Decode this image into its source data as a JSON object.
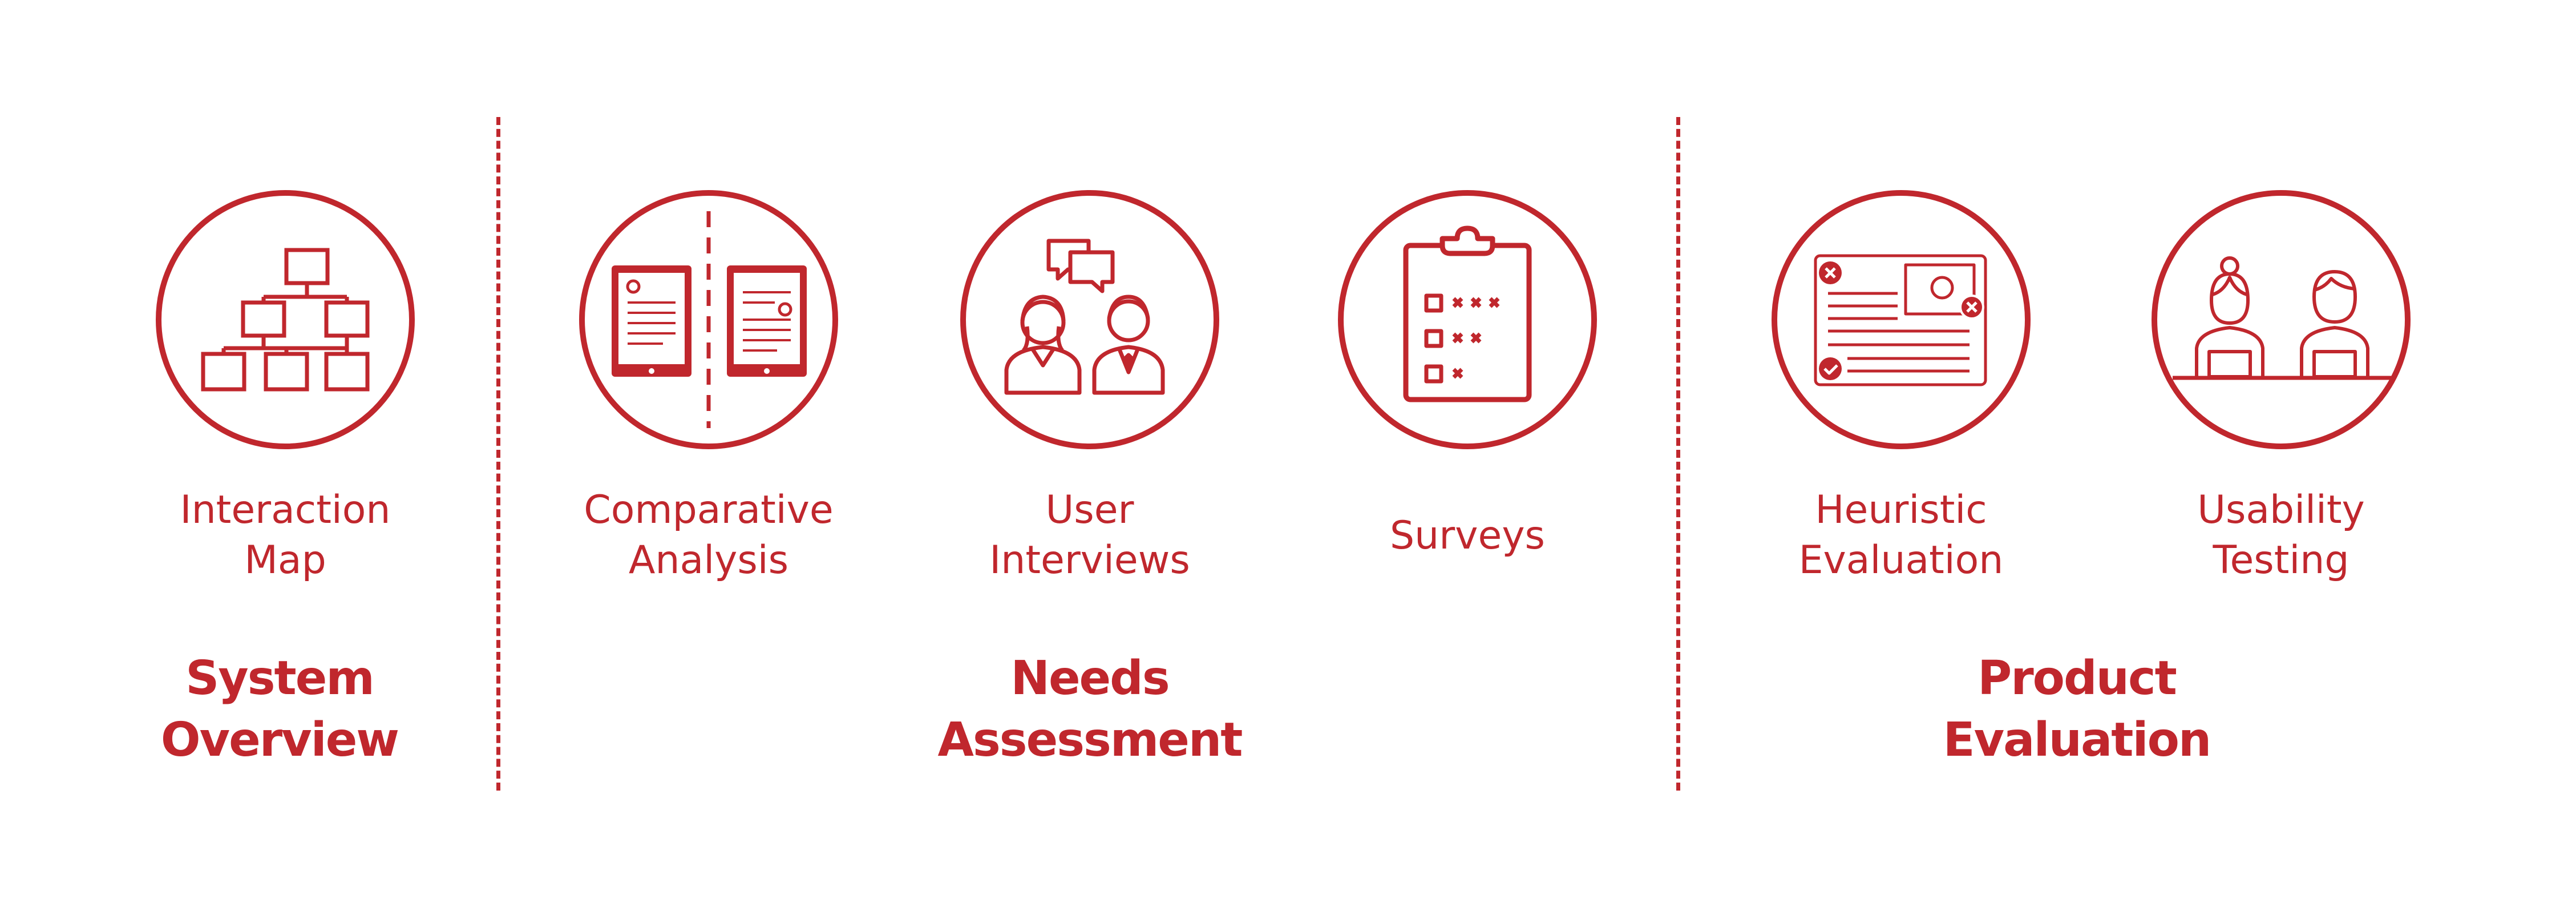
{
  "colors": {
    "accent": "#c0272d",
    "background": "#ffffff"
  },
  "methods": [
    {
      "line1": "Interaction",
      "line2": "Map",
      "icon": "hierarchy-icon"
    },
    {
      "line1": "Comparative",
      "line2": "Analysis",
      "icon": "two-tablets-icon"
    },
    {
      "line1": "User",
      "line2": "Interviews",
      "icon": "people-chat-icon"
    },
    {
      "line1": "Surveys",
      "line2": "",
      "icon": "clipboard-checklist-icon"
    },
    {
      "line1": "Heuristic",
      "line2": "Evaluation",
      "icon": "evaluation-screen-icon"
    },
    {
      "line1": "Usability",
      "line2": "Testing",
      "icon": "users-at-laptops-icon"
    }
  ],
  "groups": [
    {
      "line1": "System",
      "line2": "Overview"
    },
    {
      "line1": "Needs",
      "line2": "Assessment"
    },
    {
      "line1": "Product",
      "line2": "Evaluation"
    }
  ]
}
